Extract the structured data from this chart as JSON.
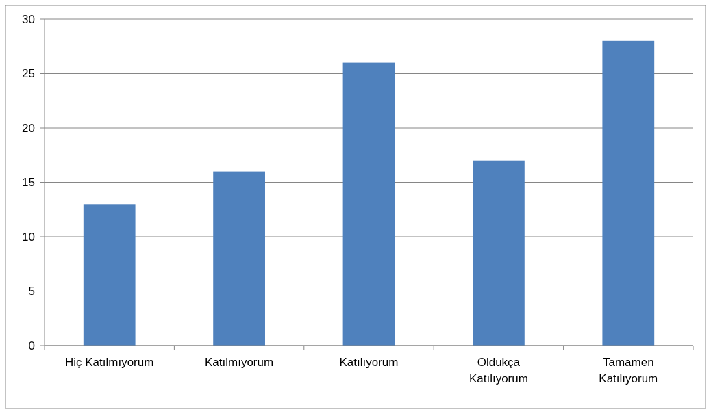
{
  "chart_data": {
    "type": "bar",
    "categories": [
      "Hiç Katılmıyorum",
      "Katılmıyorum",
      "Katılıyorum",
      "Oldukça Katılıyorum",
      "Tamamen Katılıyorum"
    ],
    "values": [
      13,
      16,
      26,
      17,
      28
    ],
    "color": "#4f81bd",
    "ylim": [
      0,
      30
    ],
    "yticks": [
      0,
      5,
      10,
      15,
      20,
      25,
      30
    ],
    "grid": "y"
  }
}
